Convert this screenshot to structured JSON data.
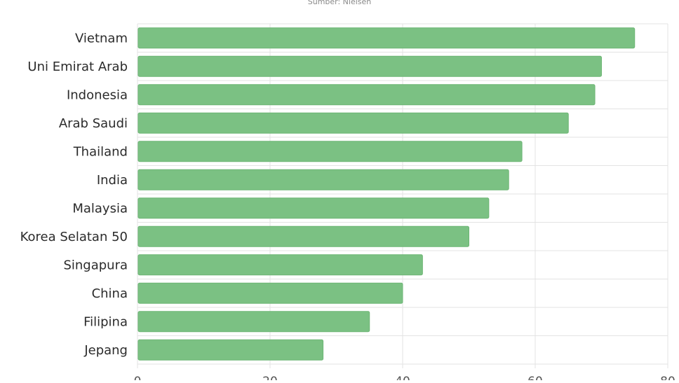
{
  "source_note": "Sumber: Nielsen",
  "chart_data": {
    "type": "bar",
    "orientation": "horizontal",
    "categories": [
      "Vietnam",
      "Uni Emirat Arab",
      "Indonesia",
      "Arab Saudi",
      "Thailand",
      "India",
      "Malaysia",
      "Korea Selatan 50",
      "Singapura",
      "China",
      "Filipina",
      "Jepang"
    ],
    "values": [
      75,
      70,
      69,
      65,
      58,
      56,
      53,
      50,
      43,
      40,
      35,
      28
    ],
    "xlim": [
      0,
      80
    ],
    "xticks": [
      0,
      20,
      40,
      60,
      80
    ],
    "grid": true,
    "legend": "none",
    "bar_color": "#7bc183",
    "bar_edge_color": "#6cb574",
    "grid_color": "#e3e3e3",
    "label_color": "#2b2b2b",
    "tick_color": "#555555"
  }
}
